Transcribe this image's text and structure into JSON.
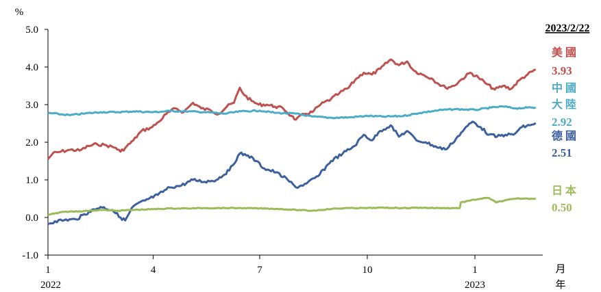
{
  "chart_data": {
    "type": "line",
    "y_unit": "%",
    "date": "2023/2/22",
    "ylim": [
      -1.0,
      5.0
    ],
    "yticks": [
      "5.0",
      "4.0",
      "3.0",
      "2.0",
      "1.0",
      "0.0",
      "-1.0"
    ],
    "x_range": [
      "2022-01-01",
      "2023-02-28"
    ],
    "xticks": [
      {
        "at": "2022-01-01",
        "label": "1",
        "year": "2022"
      },
      {
        "at": "2022-04-01",
        "label": "4",
        "year": ""
      },
      {
        "at": "2022-07-01",
        "label": "7",
        "year": ""
      },
      {
        "at": "2022-10-01",
        "label": "10",
        "year": ""
      },
      {
        "at": "2023-01-01",
        "label": "1",
        "year": "2023"
      }
    ],
    "xunit_month": "月",
    "xunit_year": "年",
    "grid": false,
    "legend_position": "right",
    "series": [
      {
        "name": "美國",
        "name_lines": [
          "美國"
        ],
        "last_value": "3.93",
        "color": "#c0504d",
        "points": [
          [
            "2022-01-01",
            1.55
          ],
          [
            "2022-01-05",
            1.7
          ],
          [
            "2022-01-12",
            1.75
          ],
          [
            "2022-01-20",
            1.8
          ],
          [
            "2022-01-28",
            1.78
          ],
          [
            "2022-02-05",
            1.9
          ],
          [
            "2022-02-12",
            1.95
          ],
          [
            "2022-02-20",
            1.92
          ],
          [
            "2022-02-28",
            1.85
          ],
          [
            "2022-03-04",
            1.75
          ],
          [
            "2022-03-08",
            1.85
          ],
          [
            "2022-03-15",
            2.05
          ],
          [
            "2022-03-22",
            2.3
          ],
          [
            "2022-03-31",
            2.4
          ],
          [
            "2022-04-06",
            2.55
          ],
          [
            "2022-04-12",
            2.75
          ],
          [
            "2022-04-20",
            2.9
          ],
          [
            "2022-04-27",
            2.8
          ],
          [
            "2022-05-05",
            3.05
          ],
          [
            "2022-05-12",
            2.9
          ],
          [
            "2022-05-20",
            2.85
          ],
          [
            "2022-05-27",
            2.75
          ],
          [
            "2022-06-03",
            2.95
          ],
          [
            "2022-06-09",
            3.05
          ],
          [
            "2022-06-14",
            3.45
          ],
          [
            "2022-06-18",
            3.25
          ],
          [
            "2022-06-24",
            3.1
          ],
          [
            "2022-06-30",
            3.0
          ],
          [
            "2022-07-07",
            3.0
          ],
          [
            "2022-07-14",
            2.95
          ],
          [
            "2022-07-21",
            2.9
          ],
          [
            "2022-07-28",
            2.7
          ],
          [
            "2022-08-01",
            2.6
          ],
          [
            "2022-08-08",
            2.75
          ],
          [
            "2022-08-15",
            2.8
          ],
          [
            "2022-08-22",
            3.0
          ],
          [
            "2022-08-31",
            3.15
          ],
          [
            "2022-09-07",
            3.3
          ],
          [
            "2022-09-15",
            3.45
          ],
          [
            "2022-09-22",
            3.7
          ],
          [
            "2022-09-28",
            3.85
          ],
          [
            "2022-10-05",
            3.8
          ],
          [
            "2022-10-12",
            3.95
          ],
          [
            "2022-10-21",
            4.2
          ],
          [
            "2022-10-28",
            4.05
          ],
          [
            "2022-11-04",
            4.15
          ],
          [
            "2022-11-10",
            3.9
          ],
          [
            "2022-11-17",
            3.8
          ],
          [
            "2022-11-25",
            3.7
          ],
          [
            "2022-12-01",
            3.55
          ],
          [
            "2022-12-07",
            3.45
          ],
          [
            "2022-12-14",
            3.5
          ],
          [
            "2022-12-21",
            3.68
          ],
          [
            "2022-12-28",
            3.85
          ],
          [
            "2023-01-04",
            3.72
          ],
          [
            "2023-01-11",
            3.55
          ],
          [
            "2023-01-18",
            3.4
          ],
          [
            "2023-01-25",
            3.5
          ],
          [
            "2023-02-01",
            3.42
          ],
          [
            "2023-02-08",
            3.65
          ],
          [
            "2023-02-15",
            3.8
          ],
          [
            "2023-02-22",
            3.93
          ]
        ]
      },
      {
        "name": "中國大陸",
        "name_lines": [
          "中國",
          "大陸"
        ],
        "last_value": "2.92",
        "color": "#4bacc6",
        "points": [
          [
            "2022-01-01",
            2.78
          ],
          [
            "2022-01-10",
            2.75
          ],
          [
            "2022-01-20",
            2.72
          ],
          [
            "2022-01-31",
            2.76
          ],
          [
            "2022-02-15",
            2.8
          ],
          [
            "2022-03-01",
            2.8
          ],
          [
            "2022-03-15",
            2.82
          ],
          [
            "2022-04-01",
            2.8
          ],
          [
            "2022-04-15",
            2.83
          ],
          [
            "2022-05-01",
            2.82
          ],
          [
            "2022-05-15",
            2.8
          ],
          [
            "2022-06-01",
            2.76
          ],
          [
            "2022-06-15",
            2.82
          ],
          [
            "2022-07-01",
            2.84
          ],
          [
            "2022-07-15",
            2.78
          ],
          [
            "2022-08-01",
            2.76
          ],
          [
            "2022-08-15",
            2.68
          ],
          [
            "2022-09-01",
            2.65
          ],
          [
            "2022-09-15",
            2.66
          ],
          [
            "2022-10-01",
            2.7
          ],
          [
            "2022-10-15",
            2.68
          ],
          [
            "2022-11-01",
            2.7
          ],
          [
            "2022-11-15",
            2.78
          ],
          [
            "2022-12-01",
            2.85
          ],
          [
            "2022-12-15",
            2.88
          ],
          [
            "2023-01-01",
            2.86
          ],
          [
            "2023-01-15",
            2.92
          ],
          [
            "2023-01-25",
            2.95
          ],
          [
            "2023-02-05",
            2.9
          ],
          [
            "2023-02-15",
            2.92
          ],
          [
            "2023-02-22",
            2.92
          ]
        ]
      },
      {
        "name": "德國",
        "name_lines": [
          "德國"
        ],
        "last_value": "2.51",
        "color": "#3c5fa0",
        "points": [
          [
            "2022-01-01",
            -0.17
          ],
          [
            "2022-01-07",
            -0.1
          ],
          [
            "2022-01-15",
            -0.07
          ],
          [
            "2022-01-25",
            -0.05
          ],
          [
            "2022-02-05",
            0.15
          ],
          [
            "2022-02-15",
            0.28
          ],
          [
            "2022-02-25",
            0.2
          ],
          [
            "2022-03-04",
            0.0
          ],
          [
            "2022-03-08",
            -0.08
          ],
          [
            "2022-03-15",
            0.3
          ],
          [
            "2022-03-25",
            0.45
          ],
          [
            "2022-04-05",
            0.6
          ],
          [
            "2022-04-15",
            0.8
          ],
          [
            "2022-04-25",
            0.85
          ],
          [
            "2022-05-05",
            1.0
          ],
          [
            "2022-05-15",
            0.95
          ],
          [
            "2022-05-25",
            1.0
          ],
          [
            "2022-06-05",
            1.25
          ],
          [
            "2022-06-14",
            1.7
          ],
          [
            "2022-06-21",
            1.65
          ],
          [
            "2022-06-28",
            1.5
          ],
          [
            "2022-07-05",
            1.3
          ],
          [
            "2022-07-15",
            1.2
          ],
          [
            "2022-07-25",
            1.0
          ],
          [
            "2022-08-01",
            0.8
          ],
          [
            "2022-08-10",
            0.9
          ],
          [
            "2022-08-20",
            1.1
          ],
          [
            "2022-08-31",
            1.5
          ],
          [
            "2022-09-10",
            1.7
          ],
          [
            "2022-09-20",
            1.9
          ],
          [
            "2022-09-28",
            2.2
          ],
          [
            "2022-10-05",
            2.05
          ],
          [
            "2022-10-12",
            2.3
          ],
          [
            "2022-10-21",
            2.45
          ],
          [
            "2022-10-28",
            2.15
          ],
          [
            "2022-11-04",
            2.3
          ],
          [
            "2022-11-12",
            2.05
          ],
          [
            "2022-11-20",
            2.0
          ],
          [
            "2022-12-01",
            1.85
          ],
          [
            "2022-12-08",
            1.82
          ],
          [
            "2022-12-16",
            2.1
          ],
          [
            "2022-12-23",
            2.35
          ],
          [
            "2022-12-30",
            2.55
          ],
          [
            "2023-01-06",
            2.4
          ],
          [
            "2023-01-13",
            2.2
          ],
          [
            "2023-01-20",
            2.15
          ],
          [
            "2023-01-27",
            2.2
          ],
          [
            "2023-02-03",
            2.2
          ],
          [
            "2023-02-10",
            2.4
          ],
          [
            "2023-02-17",
            2.45
          ],
          [
            "2023-02-22",
            2.51
          ]
        ]
      },
      {
        "name": "日本",
        "name_lines": [
          "日本"
        ],
        "last_value": "0.50",
        "color": "#9bbb59",
        "points": [
          [
            "2022-01-01",
            0.07
          ],
          [
            "2022-01-15",
            0.15
          ],
          [
            "2022-02-01",
            0.17
          ],
          [
            "2022-02-15",
            0.2
          ],
          [
            "2022-03-01",
            0.18
          ],
          [
            "2022-03-15",
            0.2
          ],
          [
            "2022-04-01",
            0.22
          ],
          [
            "2022-04-15",
            0.24
          ],
          [
            "2022-05-01",
            0.24
          ],
          [
            "2022-05-15",
            0.25
          ],
          [
            "2022-06-01",
            0.25
          ],
          [
            "2022-06-15",
            0.25
          ],
          [
            "2022-07-01",
            0.24
          ],
          [
            "2022-07-15",
            0.23
          ],
          [
            "2022-08-01",
            0.2
          ],
          [
            "2022-08-15",
            0.18
          ],
          [
            "2022-09-01",
            0.23
          ],
          [
            "2022-09-15",
            0.25
          ],
          [
            "2022-10-01",
            0.25
          ],
          [
            "2022-10-15",
            0.26
          ],
          [
            "2022-11-01",
            0.25
          ],
          [
            "2022-11-15",
            0.26
          ],
          [
            "2022-12-01",
            0.25
          ],
          [
            "2022-12-19",
            0.25
          ],
          [
            "2022-12-20",
            0.4
          ],
          [
            "2022-12-28",
            0.45
          ],
          [
            "2023-01-06",
            0.5
          ],
          [
            "2023-01-13",
            0.52
          ],
          [
            "2023-01-19",
            0.4
          ],
          [
            "2023-01-26",
            0.45
          ],
          [
            "2023-02-05",
            0.5
          ],
          [
            "2023-02-15",
            0.5
          ],
          [
            "2023-02-22",
            0.5
          ]
        ]
      }
    ]
  }
}
